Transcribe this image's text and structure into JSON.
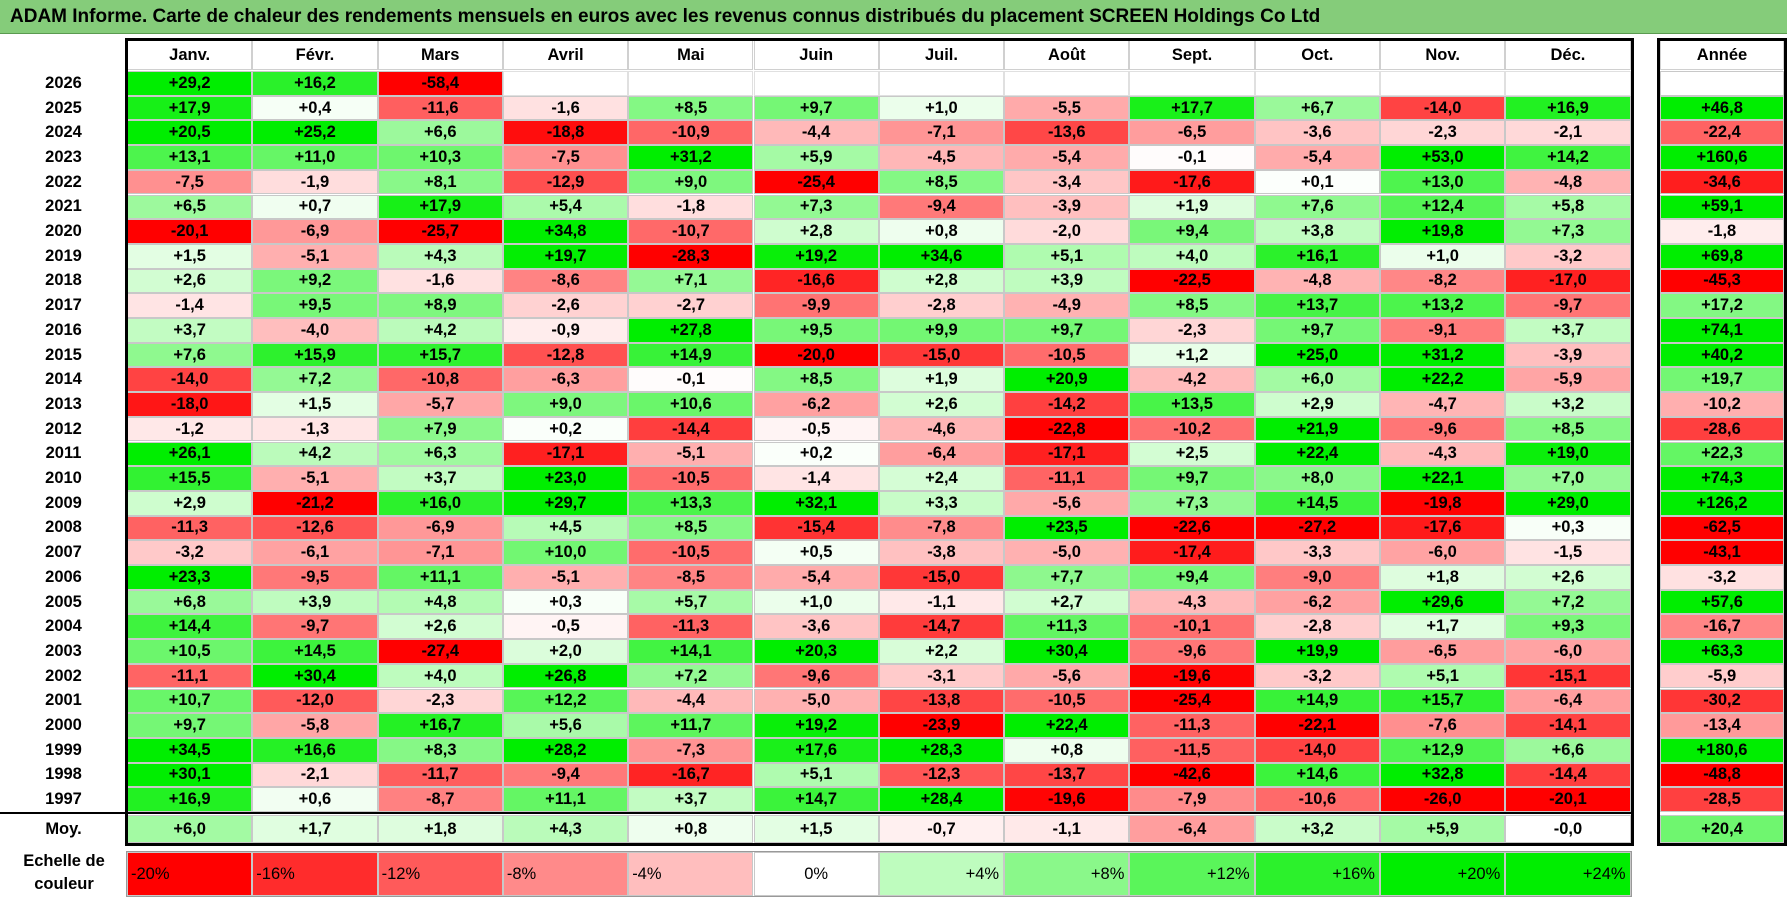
{
  "title": "ADAM Informe. Carte de chaleur des rendements mensuels en euros avec les revenus connus distribués du placement SCREEN Holdings Co Ltd",
  "chart_data": {
    "type": "heatmap",
    "columns": [
      "Janv.",
      "Févr.",
      "Mars",
      "Avril",
      "Mai",
      "Juin",
      "Juil.",
      "Août",
      "Sept.",
      "Oct.",
      "Nov.",
      "Déc."
    ],
    "year_header": "Année",
    "years": [
      "2026",
      "2025",
      "2024",
      "2023",
      "2022",
      "2021",
      "2020",
      "2019",
      "2018",
      "2017",
      "2016",
      "2015",
      "2014",
      "2013",
      "2012",
      "2011",
      "2010",
      "2009",
      "2008",
      "2007",
      "2006",
      "2005",
      "2004",
      "2003",
      "2002",
      "2001",
      "2000",
      "1999",
      "1998",
      "1997"
    ],
    "values": [
      [
        "+29,2",
        "+16,2",
        "-58,4",
        "",
        "",
        "",
        "",
        "",
        "",
        "",
        "",
        ""
      ],
      [
        "+17,9",
        "+0,4",
        "-11,6",
        "-1,6",
        "+8,5",
        "+9,7",
        "+1,0",
        "-5,5",
        "+17,7",
        "+6,7",
        "-14,0",
        "+16,9"
      ],
      [
        "+20,5",
        "+25,2",
        "+6,6",
        "-18,8",
        "-10,9",
        "-4,4",
        "-7,1",
        "-13,6",
        "-6,5",
        "-3,6",
        "-2,3",
        "-2,1"
      ],
      [
        "+13,1",
        "+11,0",
        "+10,3",
        "-7,5",
        "+31,2",
        "+5,9",
        "-4,5",
        "-5,4",
        "-0,1",
        "-5,4",
        "+53,0",
        "+14,2"
      ],
      [
        "-7,5",
        "-1,9",
        "+8,1",
        "-12,9",
        "+9,0",
        "-25,4",
        "+8,5",
        "-3,4",
        "-17,6",
        "+0,1",
        "+13,0",
        "-4,8"
      ],
      [
        "+6,5",
        "+0,7",
        "+17,9",
        "+5,4",
        "-1,8",
        "+7,3",
        "-9,4",
        "-3,9",
        "+1,9",
        "+7,6",
        "+12,4",
        "+5,8"
      ],
      [
        "-20,1",
        "-6,9",
        "-25,7",
        "+34,8",
        "-10,7",
        "+2,8",
        "+0,8",
        "-2,0",
        "+9,4",
        "+3,8",
        "+19,8",
        "+7,3"
      ],
      [
        "+1,5",
        "-5,1",
        "+4,3",
        "+19,7",
        "-28,3",
        "+19,2",
        "+34,6",
        "+5,1",
        "+4,0",
        "+16,1",
        "+1,0",
        "-3,2"
      ],
      [
        "+2,6",
        "+9,2",
        "-1,6",
        "-8,6",
        "+7,1",
        "-16,6",
        "+2,8",
        "+3,9",
        "-22,5",
        "-4,8",
        "-8,2",
        "-17,0"
      ],
      [
        "-1,4",
        "+9,5",
        "+8,9",
        "-2,6",
        "-2,7",
        "-9,9",
        "-2,8",
        "-4,9",
        "+8,5",
        "+13,7",
        "+13,2",
        "-9,7"
      ],
      [
        "+3,7",
        "-4,0",
        "+4,2",
        "-0,9",
        "+27,8",
        "+9,5",
        "+9,9",
        "+9,7",
        "-2,3",
        "+9,7",
        "-9,1",
        "+3,7"
      ],
      [
        "+7,6",
        "+15,9",
        "+15,7",
        "-12,8",
        "+14,9",
        "-20,0",
        "-15,0",
        "-10,5",
        "+1,2",
        "+25,0",
        "+31,2",
        "-3,9"
      ],
      [
        "-14,0",
        "+7,2",
        "-10,8",
        "-6,3",
        "-0,1",
        "+8,5",
        "+1,9",
        "+20,9",
        "-4,2",
        "+6,0",
        "+22,2",
        "-5,9"
      ],
      [
        "-18,0",
        "+1,5",
        "-5,7",
        "+9,0",
        "+10,6",
        "-6,2",
        "+2,6",
        "-14,2",
        "+13,5",
        "+2,9",
        "-4,7",
        "+3,2"
      ],
      [
        "-1,2",
        "-1,3",
        "+7,9",
        "+0,2",
        "-14,4",
        "-0,5",
        "-4,6",
        "-22,8",
        "-10,2",
        "+21,9",
        "-9,6",
        "+8,5"
      ],
      [
        "+26,1",
        "+4,2",
        "+6,3",
        "-17,1",
        "-5,1",
        "+0,2",
        "-6,4",
        "-17,1",
        "+2,5",
        "+22,4",
        "-4,3",
        "+19,0"
      ],
      [
        "+15,5",
        "-5,1",
        "+3,7",
        "+23,0",
        "-10,5",
        "-1,4",
        "+2,4",
        "-11,1",
        "+9,7",
        "+8,0",
        "+22,1",
        "+7,0"
      ],
      [
        "+2,9",
        "-21,2",
        "+16,0",
        "+29,7",
        "+13,3",
        "+32,1",
        "+3,3",
        "-5,6",
        "+7,3",
        "+14,5",
        "-19,8",
        "+29,0"
      ],
      [
        "-11,3",
        "-12,6",
        "-6,9",
        "+4,5",
        "+8,5",
        "-15,4",
        "-7,8",
        "+23,5",
        "-22,6",
        "-27,2",
        "-17,6",
        "+0,3"
      ],
      [
        "-3,2",
        "-6,1",
        "-7,1",
        "+10,0",
        "-10,5",
        "+0,5",
        "-3,8",
        "-5,0",
        "-17,4",
        "-3,3",
        "-6,0",
        "-1,5"
      ],
      [
        "+23,3",
        "-9,5",
        "+11,1",
        "-5,1",
        "-8,5",
        "-5,4",
        "-15,0",
        "+7,7",
        "+9,4",
        "-9,0",
        "+1,8",
        "+2,6"
      ],
      [
        "+6,8",
        "+3,9",
        "+4,8",
        "+0,3",
        "+5,7",
        "+1,0",
        "-1,1",
        "+2,7",
        "-4,3",
        "-6,2",
        "+29,6",
        "+7,2"
      ],
      [
        "+14,4",
        "-9,7",
        "+2,6",
        "-0,5",
        "-11,3",
        "-3,6",
        "-14,7",
        "+11,3",
        "-10,1",
        "-2,8",
        "+1,7",
        "+9,3"
      ],
      [
        "+10,5",
        "+14,5",
        "-27,4",
        "+2,0",
        "+14,1",
        "+20,3",
        "+2,2",
        "+30,4",
        "-9,6",
        "+19,9",
        "-6,5",
        "-6,0"
      ],
      [
        "-11,1",
        "+30,4",
        "+4,0",
        "+26,8",
        "+7,2",
        "-9,6",
        "-3,1",
        "-5,6",
        "-19,6",
        "-3,2",
        "+5,1",
        "-15,1"
      ],
      [
        "+10,7",
        "-12,0",
        "-2,3",
        "+12,2",
        "-4,4",
        "-5,0",
        "-13,8",
        "-10,5",
        "-25,4",
        "+14,9",
        "+15,7",
        "-6,4"
      ],
      [
        "+9,7",
        "-5,8",
        "+16,7",
        "+5,6",
        "+11,7",
        "+19,2",
        "-23,9",
        "+22,4",
        "-11,3",
        "-22,1",
        "-7,6",
        "-14,1"
      ],
      [
        "+34,5",
        "+16,6",
        "+8,3",
        "+28,2",
        "-7,3",
        "+17,6",
        "+28,3",
        "+0,8",
        "-11,5",
        "-14,0",
        "+12,9",
        "+6,6"
      ],
      [
        "+30,1",
        "-2,1",
        "-11,7",
        "-9,4",
        "-16,7",
        "+5,1",
        "-12,3",
        "-13,7",
        "-42,6",
        "+14,6",
        "+32,8",
        "-14,4"
      ],
      [
        "+16,9",
        "+0,6",
        "-8,7",
        "+11,1",
        "+3,7",
        "+14,7",
        "+28,4",
        "-19,6",
        "-7,9",
        "-10,6",
        "-26,0",
        "-20,1"
      ]
    ],
    "annual": [
      "",
      "+46,8",
      "-22,4",
      "+160,6",
      "-34,6",
      "+59,1",
      "-1,8",
      "+69,8",
      "-45,3",
      "+17,2",
      "+74,1",
      "+40,2",
      "+19,7",
      "-10,2",
      "-28,6",
      "+22,3",
      "+74,3",
      "+126,2",
      "-62,5",
      "-43,1",
      "-3,2",
      "+57,6",
      "-16,7",
      "+63,3",
      "-5,9",
      "-30,2",
      "-13,4",
      "+180,6",
      "-48,8",
      "-28,5"
    ],
    "average_label": "Moy.",
    "averages": [
      "+6,0",
      "+1,7",
      "+1,8",
      "+4,3",
      "+0,8",
      "+1,5",
      "-0,7",
      "-1,1",
      "-6,4",
      "+3,2",
      "+5,9",
      "-0,0"
    ],
    "average_annual": "+20,4",
    "scale_label": "Echelle de couleur",
    "scale": [
      "-20%",
      "-16%",
      "-12%",
      "-8%",
      "-4%",
      "0%",
      "+4%",
      "+8%",
      "+12%",
      "+16%",
      "+20%",
      "+24%"
    ],
    "colors": {
      "title_bg": "#85cc7a",
      "strong_neg": "#ff0000",
      "neutral": "#ffffff",
      "strong_pos": "#00ee00"
    }
  }
}
